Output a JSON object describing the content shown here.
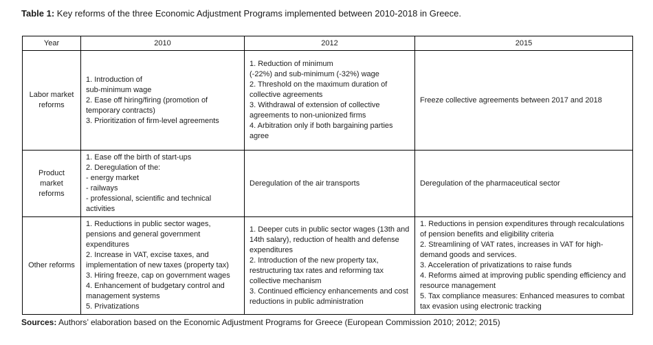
{
  "caption": {
    "label": "Table 1:",
    "text": "Key reforms of the three Economic Adjustment Programs implemented between 2010-2018 in Greece."
  },
  "table": {
    "headers": [
      "Year",
      "2010",
      "2012",
      "2015"
    ],
    "rows": [
      {
        "label": "Labor market\nreforms",
        "cells": [
          [
            "1. Introduction of\nsub-minimum wage",
            "2. Ease off hiring/firing (promotion of temporary contracts)",
            "3. Prioritization of firm-level agreements"
          ],
          [
            "1. Reduction of minimum\n(-22%) and sub-minimum (-32%) wage",
            "2. Threshold on the maximum duration of collective agreements",
            "3. Withdrawal of extension of collective agreements to non-unionized firms",
            "4. Arbitration only if both bargaining parties agree"
          ],
          [
            "Freeze collective agreements between 2017 and 2018"
          ]
        ]
      },
      {
        "label": "Product\nmarket\nreforms",
        "cells": [
          [
            "1. Ease off the birth of start-ups",
            "2. Deregulation of the:",
            "- energy market",
            "- railways",
            "- professional, scientific and technical activities"
          ],
          [
            "Deregulation of the air transports"
          ],
          [
            "Deregulation of the pharmaceutical sector"
          ]
        ]
      },
      {
        "label": "Other reforms",
        "cells": [
          [
            "1. Reductions in public sector wages, pensions and general government expenditures",
            "2. Increase in VAT, excise taxes, and implementation of new taxes (property tax)",
            "3. Hiring freeze, cap on government wages",
            "4. Enhancement of budgetary control and management systems",
            "5. Privatizations"
          ],
          [
            "1. Deeper cuts in public sector wages (13th and 14th salary), reduction of health and defense expenditures",
            "2. Introduction of the new property tax, restructuring tax rates and reforming tax collective mechanism",
            "3. Continued efficiency enhancements and cost reductions in public administration"
          ],
          [
            "1. Reductions in pension expenditures through recalculations of pension benefits and eligibility criteria",
            "2. Streamlining of VAT rates, increases in VAT for high-demand goods and services.",
            "3. Acceleration of privatizations to raise funds",
            "4. Reforms aimed at improving public spending efficiency and resource management",
            "5. Tax compliance measures: Enhanced measures to combat tax evasion using electronic tracking"
          ]
        ]
      }
    ]
  },
  "sources": {
    "label": "Sources:",
    "text": "Authors’ elaboration based on the Economic Adjustment Programs for Greece (European Commission 2010; 2012; 2015)"
  },
  "colors": {
    "text": "#1c1c1c",
    "border": "#000000",
    "background": "#ffffff"
  }
}
